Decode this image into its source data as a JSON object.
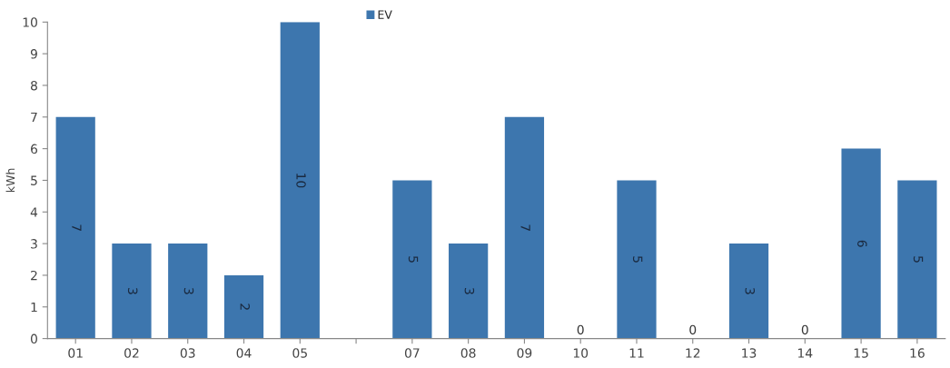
{
  "chart_data": {
    "type": "bar",
    "ylabel": "kWh",
    "categories": [
      "01",
      "02",
      "03",
      "04",
      "05",
      null,
      "07",
      "08",
      "09",
      "10",
      "11",
      "12",
      "13",
      "14",
      "15",
      "16"
    ],
    "series": [
      {
        "name": "EV",
        "color": "#3d76ae",
        "values": [
          7,
          3,
          3,
          2,
          10,
          0,
          5,
          3,
          7,
          0,
          5,
          0,
          3,
          0,
          6,
          5
        ],
        "value_labels": [
          "7",
          "3",
          "3",
          "2",
          "10",
          null,
          "5",
          "3",
          "7",
          "0",
          "5",
          "0",
          "3",
          "0",
          "6",
          "5"
        ]
      }
    ],
    "ylim": [
      0,
      10
    ],
    "yticks": [
      0,
      1,
      2,
      3,
      4,
      5,
      6,
      7,
      8,
      9,
      10
    ],
    "grid": false,
    "legend": "top"
  }
}
